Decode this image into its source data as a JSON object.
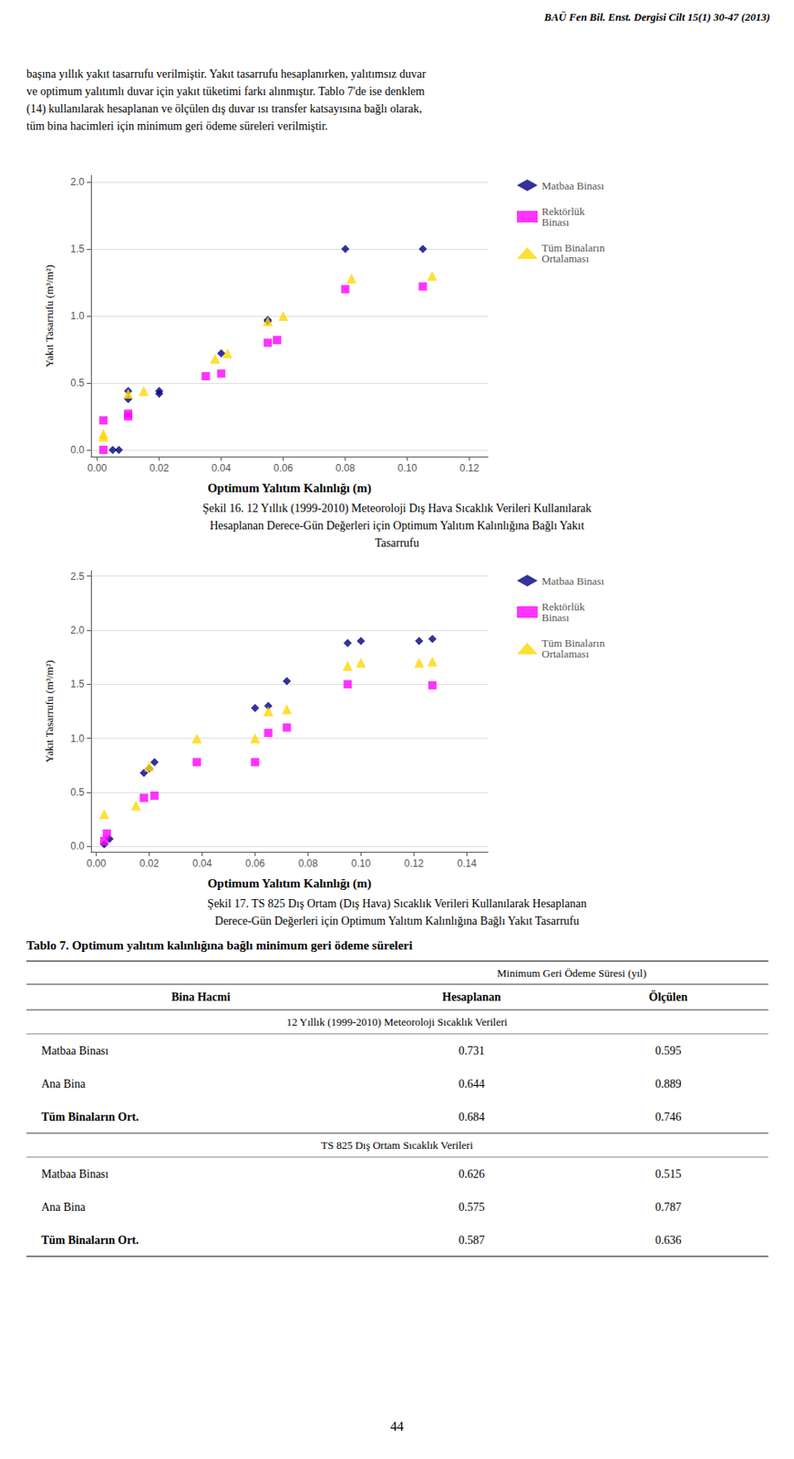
{
  "header_text": "BAÜ Fen Bil. Enst. Dergisi Cilt 15(1) 30-47 (2013)",
  "intro": [
    "başına yıllık yakıt tasarrufu verilmiştir. Yakıt tasarrufu hesaplanırken, yalıtımsız duvar",
    "ve optimum yalıtımlı duvar için yakıt tüketimi farkı alınmıştır. Tablo 7'de ise denklem",
    "(14) kullanılarak hesaplanan ve ölçülen dış duvar ısı transfer katsayısına bağlı olarak,",
    "tüm bina hacimleri için minimum geri ödeme süreleri verilmiştir."
  ],
  "chart_data": [
    {
      "type": "scatter",
      "xlabel": "Optimum Yalıtım Kalınlığı (m)",
      "ylabel": "Yakıt Tasarrufu (m³/m²)",
      "xlim": [
        -0.002,
        0.126
      ],
      "ylim": [
        -0.05,
        2.05
      ],
      "xticks": [
        {
          "value": 0.0,
          "label": "0.00"
        },
        0.02,
        0.04,
        0.06,
        0.08,
        {
          "value": 0.1,
          "label": "0.10"
        },
        0.12
      ],
      "yticks": [
        {
          "value": 0.0,
          "label": "0.0"
        },
        0.5,
        {
          "value": 1.0,
          "label": "1.0"
        },
        1.5,
        {
          "value": 2.0,
          "label": "2.0"
        }
      ],
      "grid": "y",
      "legend": "right",
      "series": [
        {
          "name": "Matbaa Binası",
          "color": "#000080",
          "marker": "diamond",
          "x": [
            0.005,
            0.007,
            0.01,
            0.01,
            0.02,
            0.02,
            0.04,
            0.055,
            0.055,
            0.08,
            0.105
          ],
          "values": [
            0.0,
            0.0,
            0.38,
            0.44,
            0.42,
            0.44,
            0.72,
            0.96,
            0.97,
            1.5,
            1.5
          ]
        },
        {
          "name": "Rektörlük\nBinası",
          "color": "#FF00FF",
          "marker": "square",
          "x": [
            0.002,
            0.002,
            0.01,
            0.01,
            0.035,
            0.04,
            0.055,
            0.058,
            0.08,
            0.105
          ],
          "values": [
            0.0,
            0.22,
            0.25,
            0.27,
            0.55,
            0.57,
            0.8,
            0.82,
            1.2,
            1.22
          ]
        },
        {
          "name": "Tüm Binaların\nOrtalaması",
          "color": "#FFD700",
          "marker": "triangle",
          "x": [
            0.002,
            0.002,
            0.01,
            0.015,
            0.038,
            0.042,
            0.055,
            0.06,
            0.082,
            0.108
          ],
          "values": [
            0.1,
            0.12,
            0.42,
            0.44,
            0.68,
            0.72,
            0.96,
            1.0,
            1.28,
            1.3
          ]
        }
      ],
      "caption": [
        "Şekil 16. 12 Yıllık (1999-2010) Meteoroloji Dış Hava Sıcaklık Verileri Kullanılarak",
        "Hesaplanan Derece-Gün Değerleri için Optimum Yalıtım Kalınlığına Bağlı Yakıt",
        "Tasarrufu"
      ]
    },
    {
      "type": "scatter",
      "xlabel": "Optimum Yalıtım Kalınlığı (m)",
      "ylabel": "Yakıt Tasarrufu (m³/m²)",
      "xlim": [
        -0.002,
        0.148
      ],
      "ylim": [
        -0.05,
        2.55
      ],
      "xticks": [
        {
          "value": 0.0,
          "label": "0.00"
        },
        0.02,
        0.04,
        0.06,
        0.08,
        {
          "value": 0.1,
          "label": "0.10"
        },
        0.12,
        0.14
      ],
      "yticks": [
        {
          "value": 0.0,
          "label": "0.0"
        },
        0.5,
        {
          "value": 1.0,
          "label": "1.0"
        },
        1.5,
        {
          "value": 2.0,
          "label": "2.0"
        },
        2.5
      ],
      "grid": "y",
      "legend": "right",
      "series": [
        {
          "name": "Matbaa Binası",
          "color": "#000080",
          "marker": "diamond",
          "x": [
            0.003,
            0.005,
            0.018,
            0.02,
            0.022,
            0.06,
            0.065,
            0.072,
            0.095,
            0.1,
            0.122,
            0.127
          ],
          "values": [
            0.02,
            0.07,
            0.68,
            0.72,
            0.78,
            1.28,
            1.3,
            1.53,
            1.88,
            1.9,
            1.9,
            1.92
          ]
        },
        {
          "name": "Rektörlük\nBinası",
          "color": "#FF00FF",
          "marker": "square",
          "x": [
            0.003,
            0.004,
            0.018,
            0.022,
            0.038,
            0.06,
            0.065,
            0.072,
            0.095,
            0.127
          ],
          "values": [
            0.05,
            0.12,
            0.45,
            0.47,
            0.78,
            0.78,
            1.05,
            1.1,
            1.5,
            1.49
          ]
        },
        {
          "name": "Tüm Binaların\nOrtalaması",
          "color": "#FFD700",
          "marker": "triangle",
          "x": [
            0.003,
            0.015,
            0.02,
            0.038,
            0.06,
            0.065,
            0.072,
            0.095,
            0.1,
            0.122,
            0.127
          ],
          "values": [
            0.3,
            0.38,
            0.74,
            1.0,
            1.0,
            1.25,
            1.27,
            1.67,
            1.7,
            1.7,
            1.71
          ]
        }
      ],
      "caption": [
        "Şekil 17. TS 825 Dış Ortam (Dış Hava) Sıcaklık Verileri Kullanılarak Hesaplanan",
        "Derece-Gün Değerleri için Optimum Yalıtım Kalınlığına Bağlı Yakıt Tasarrufu"
      ]
    }
  ],
  "table": {
    "title": "Tablo 7. Optimum yalıtım kalınlığına bağlı minimum geri ödeme süreleri",
    "header": "Minimum Geri Ödeme Süresi (yıl)",
    "columns": [
      "Bina Hacmi",
      "Hesaplanan",
      "Ölçülen"
    ],
    "sections": [
      {
        "title": "12 Yıllık (1999-2010) Meteoroloji Sıcaklık Verileri",
        "rows": [
          [
            "Matbaa Binası",
            "0.731",
            "0.595"
          ],
          [
            "Ana Bina",
            "0.644",
            "0.889"
          ],
          [
            "Tüm Binaların Ort.",
            "0.684",
            "0.746"
          ]
        ]
      },
      {
        "title": "TS 825 Dış Ortam Sıcaklık Verileri",
        "rows": [
          [
            "Matbaa Binası",
            "0.626",
            "0.515"
          ],
          [
            "Ana Bina",
            "0.575",
            "0.787"
          ],
          [
            "Tüm Binaların Ort.",
            "0.587",
            "0.636"
          ]
        ]
      }
    ]
  },
  "footer_text": "44"
}
